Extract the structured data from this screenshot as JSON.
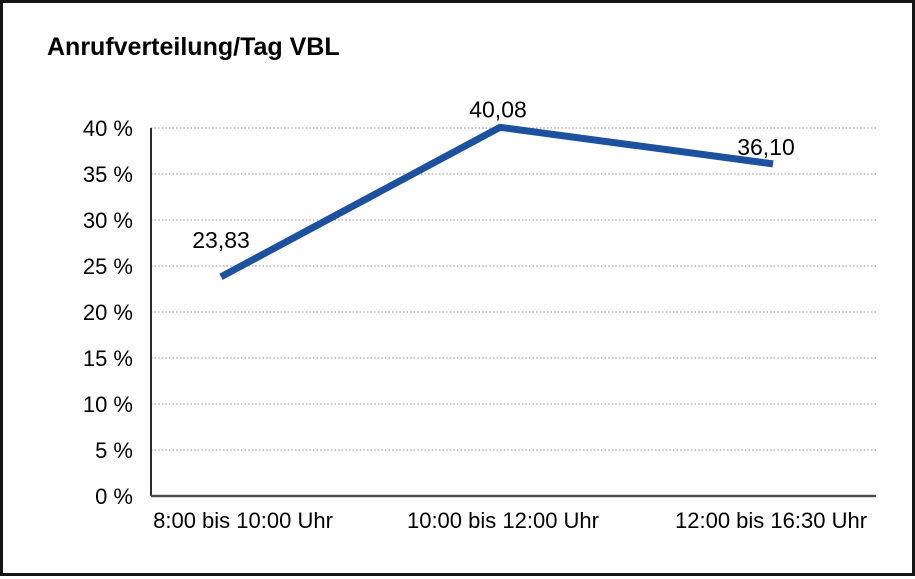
{
  "chart": {
    "title": "Anrufverteilung/Tag VBL"
  },
  "chart_data": {
    "type": "line",
    "title": "Anrufverteilung/Tag VBL",
    "categories": [
      "8:00 bis 10:00 Uhr",
      "10:00 bis 12:00 Uhr",
      "12:00 bis 16:30 Uhr"
    ],
    "values": [
      23.83,
      40.08,
      36.1
    ],
    "value_labels": [
      "23,83",
      "40,08",
      "36,10"
    ],
    "xlabel": "",
    "ylabel": "",
    "ylim": [
      0,
      40
    ],
    "ytick_step": 5,
    "ytick_labels": [
      "0 %",
      "5 %",
      "10 %",
      "15 %",
      "20 %",
      "25 %",
      "30 %",
      "35 %",
      "40 %"
    ],
    "grid": "horizontal-dotted",
    "legend": "none"
  },
  "colors": {
    "line": "#1b519e",
    "grid": "#8c8c8c",
    "y_axis": "#2b2b2b",
    "x_axis": "#4d4d4d",
    "text": "#000000",
    "background": "#ffffff",
    "border": "#161616"
  }
}
